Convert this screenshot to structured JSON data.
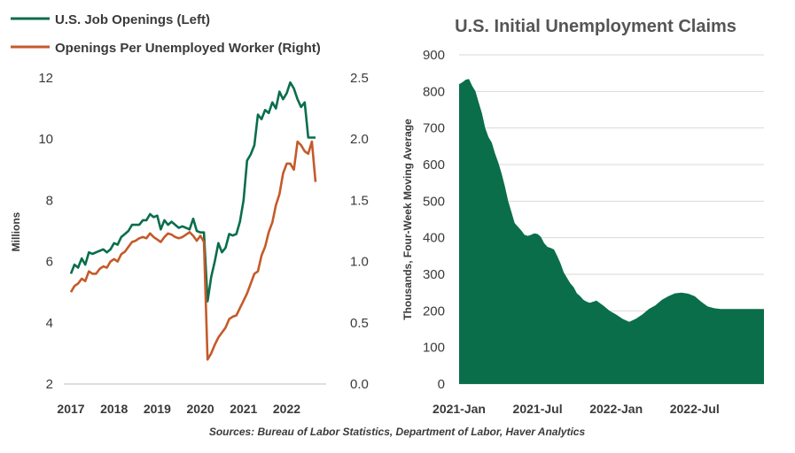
{
  "source_note": "Sources: Bureau of Labor Statistics, Department of Labor, Haver Analytics",
  "colors": {
    "openings": "#0a6e4a",
    "ratio": "#c55a2a",
    "claims": "#0a6e4a",
    "grid": "#d9d9d9",
    "text": "#3a3a3a"
  },
  "chart_data": [
    {
      "type": "line",
      "title": "",
      "ylabel": "Millions",
      "y2label": "",
      "xlabel": "",
      "x_tick_labels": [
        "2017",
        "2018",
        "2019",
        "2020",
        "2021",
        "2022"
      ],
      "xlim": [
        2017.0,
        2022.75
      ],
      "ylim": [
        2,
        12
      ],
      "y_tick_labels": [
        "2",
        "4",
        "6",
        "8",
        "10",
        "12"
      ],
      "y2lim": [
        0.0,
        2.5
      ],
      "y2_tick_labels": [
        "0.0",
        "0.5",
        "1.0",
        "1.5",
        "2.0",
        "2.5"
      ],
      "grid": false,
      "legend_position": "top-left",
      "series": [
        {
          "name": "U.S. Job Openings (Left)",
          "axis": "left",
          "x": [
            2017.0,
            2017.083,
            2017.167,
            2017.25,
            2017.333,
            2017.417,
            2017.5,
            2017.583,
            2017.667,
            2017.75,
            2017.833,
            2017.917,
            2018.0,
            2018.083,
            2018.167,
            2018.25,
            2018.333,
            2018.417,
            2018.5,
            2018.583,
            2018.667,
            2018.75,
            2018.833,
            2018.917,
            2019.0,
            2019.083,
            2019.167,
            2019.25,
            2019.333,
            2019.417,
            2019.5,
            2019.583,
            2019.667,
            2019.75,
            2019.833,
            2019.917,
            2020.0,
            2020.083,
            2020.167,
            2020.25,
            2020.333,
            2020.417,
            2020.5,
            2020.583,
            2020.667,
            2020.75,
            2020.833,
            2020.917,
            2021.0,
            2021.083,
            2021.167,
            2021.25,
            2021.333,
            2021.417,
            2021.5,
            2021.583,
            2021.667,
            2021.75,
            2021.833,
            2021.917,
            2022.0,
            2022.083,
            2022.167,
            2022.25,
            2022.333,
            2022.417,
            2022.5,
            2022.583,
            2022.667
          ],
          "values": [
            5.6,
            5.9,
            5.8,
            6.1,
            5.9,
            6.3,
            6.25,
            6.3,
            6.35,
            6.4,
            6.3,
            6.4,
            6.6,
            6.55,
            6.8,
            6.9,
            7.0,
            7.2,
            7.2,
            7.2,
            7.35,
            7.35,
            7.55,
            7.45,
            7.5,
            7.05,
            7.35,
            7.2,
            7.3,
            7.2,
            7.1,
            7.15,
            7.1,
            7.05,
            7.4,
            7.0,
            6.95,
            6.95,
            4.7,
            5.5,
            6.0,
            6.6,
            6.3,
            6.45,
            6.9,
            6.85,
            6.9,
            7.3,
            8.0,
            9.3,
            9.5,
            9.8,
            10.8,
            10.65,
            10.95,
            10.85,
            11.2,
            11.0,
            11.55,
            11.3,
            11.5,
            11.85,
            11.65,
            11.3,
            11.05,
            11.2,
            10.05,
            10.05,
            10.05
          ]
        },
        {
          "name": "Openings Per Unemployed Worker (Right)",
          "axis": "right",
          "x": [
            2017.0,
            2017.083,
            2017.167,
            2017.25,
            2017.333,
            2017.417,
            2017.5,
            2017.583,
            2017.667,
            2017.75,
            2017.833,
            2017.917,
            2018.0,
            2018.083,
            2018.167,
            2018.25,
            2018.333,
            2018.417,
            2018.5,
            2018.583,
            2018.667,
            2018.75,
            2018.833,
            2018.917,
            2019.0,
            2019.083,
            2019.167,
            2019.25,
            2019.333,
            2019.417,
            2019.5,
            2019.583,
            2019.667,
            2019.75,
            2019.833,
            2019.917,
            2020.0,
            2020.083,
            2020.167,
            2020.25,
            2020.333,
            2020.417,
            2020.5,
            2020.583,
            2020.667,
            2020.75,
            2020.833,
            2020.917,
            2021.0,
            2021.083,
            2021.167,
            2021.25,
            2021.333,
            2021.417,
            2021.5,
            2021.583,
            2021.667,
            2021.75,
            2021.833,
            2021.917,
            2022.0,
            2022.083,
            2022.167,
            2022.25,
            2022.333,
            2022.417,
            2022.5,
            2022.583,
            2022.667
          ],
          "values": [
            0.75,
            0.8,
            0.82,
            0.86,
            0.84,
            0.92,
            0.9,
            0.9,
            0.94,
            0.96,
            0.95,
            1.0,
            1.02,
            1.0,
            1.06,
            1.08,
            1.12,
            1.16,
            1.17,
            1.19,
            1.2,
            1.19,
            1.23,
            1.2,
            1.18,
            1.16,
            1.2,
            1.23,
            1.22,
            1.2,
            1.19,
            1.2,
            1.22,
            1.24,
            1.21,
            1.17,
            1.21,
            1.16,
            0.2,
            0.25,
            0.32,
            0.38,
            0.42,
            0.46,
            0.53,
            0.55,
            0.56,
            0.62,
            0.68,
            0.74,
            0.82,
            0.9,
            0.92,
            1.05,
            1.12,
            1.24,
            1.32,
            1.46,
            1.55,
            1.72,
            1.8,
            1.8,
            1.75,
            1.98,
            1.95,
            1.9,
            1.88,
            1.98,
            1.65
          ]
        }
      ]
    },
    {
      "type": "area",
      "title": "U.S. Initial Unemployment Claims",
      "ylabel": "Thousands, Four-Week Moving Average",
      "xlabel": "",
      "x_tick_labels": [
        "2021-Jan",
        "2021-Jul",
        "2022-Jan",
        "2022-Jul"
      ],
      "x_tick_positions": [
        "2021-01",
        "2021-07",
        "2022-01",
        "2022-07"
      ],
      "ylim": [
        0,
        900
      ],
      "y_tick_labels": [
        "0",
        "100",
        "200",
        "300",
        "400",
        "500",
        "600",
        "700",
        "800",
        "900"
      ],
      "grid": true,
      "legend_position": "none",
      "series": [
        {
          "name": "",
          "x_months": [
            0,
            0.25,
            0.5,
            0.75,
            1.0,
            1.25,
            1.5,
            1.75,
            2.0,
            2.25,
            2.5,
            2.75,
            3.0,
            3.25,
            3.5,
            3.75,
            4.0,
            4.25,
            4.5,
            4.75,
            5.0,
            5.25,
            5.5,
            5.75,
            6.0,
            6.25,
            6.5,
            6.75,
            7.0,
            7.25,
            7.5,
            7.75,
            8.0,
            8.25,
            8.5,
            8.75,
            9.0,
            9.25,
            9.5,
            9.75,
            10.0,
            10.5,
            11.0,
            11.5,
            12.0,
            12.5,
            13.0,
            13.5,
            14.0,
            14.5,
            15.0,
            15.5,
            16.0,
            16.5,
            17.0,
            17.5,
            18.0,
            18.5,
            19.0,
            19.5,
            20.0,
            20.5,
            21.0,
            21.5,
            22.0,
            22.5,
            23.0,
            23.3
          ],
          "values": [
            820,
            825,
            832,
            834,
            815,
            800,
            770,
            740,
            700,
            675,
            660,
            630,
            605,
            575,
            540,
            500,
            470,
            440,
            430,
            420,
            408,
            405,
            408,
            412,
            410,
            402,
            385,
            375,
            372,
            368,
            350,
            330,
            305,
            290,
            275,
            265,
            248,
            240,
            230,
            225,
            222,
            228,
            215,
            200,
            190,
            178,
            170,
            178,
            190,
            205,
            215,
            230,
            240,
            248,
            250,
            247,
            240,
            225,
            212,
            207,
            205,
            205,
            205,
            205,
            205,
            205,
            205,
            205
          ]
        }
      ]
    }
  ]
}
